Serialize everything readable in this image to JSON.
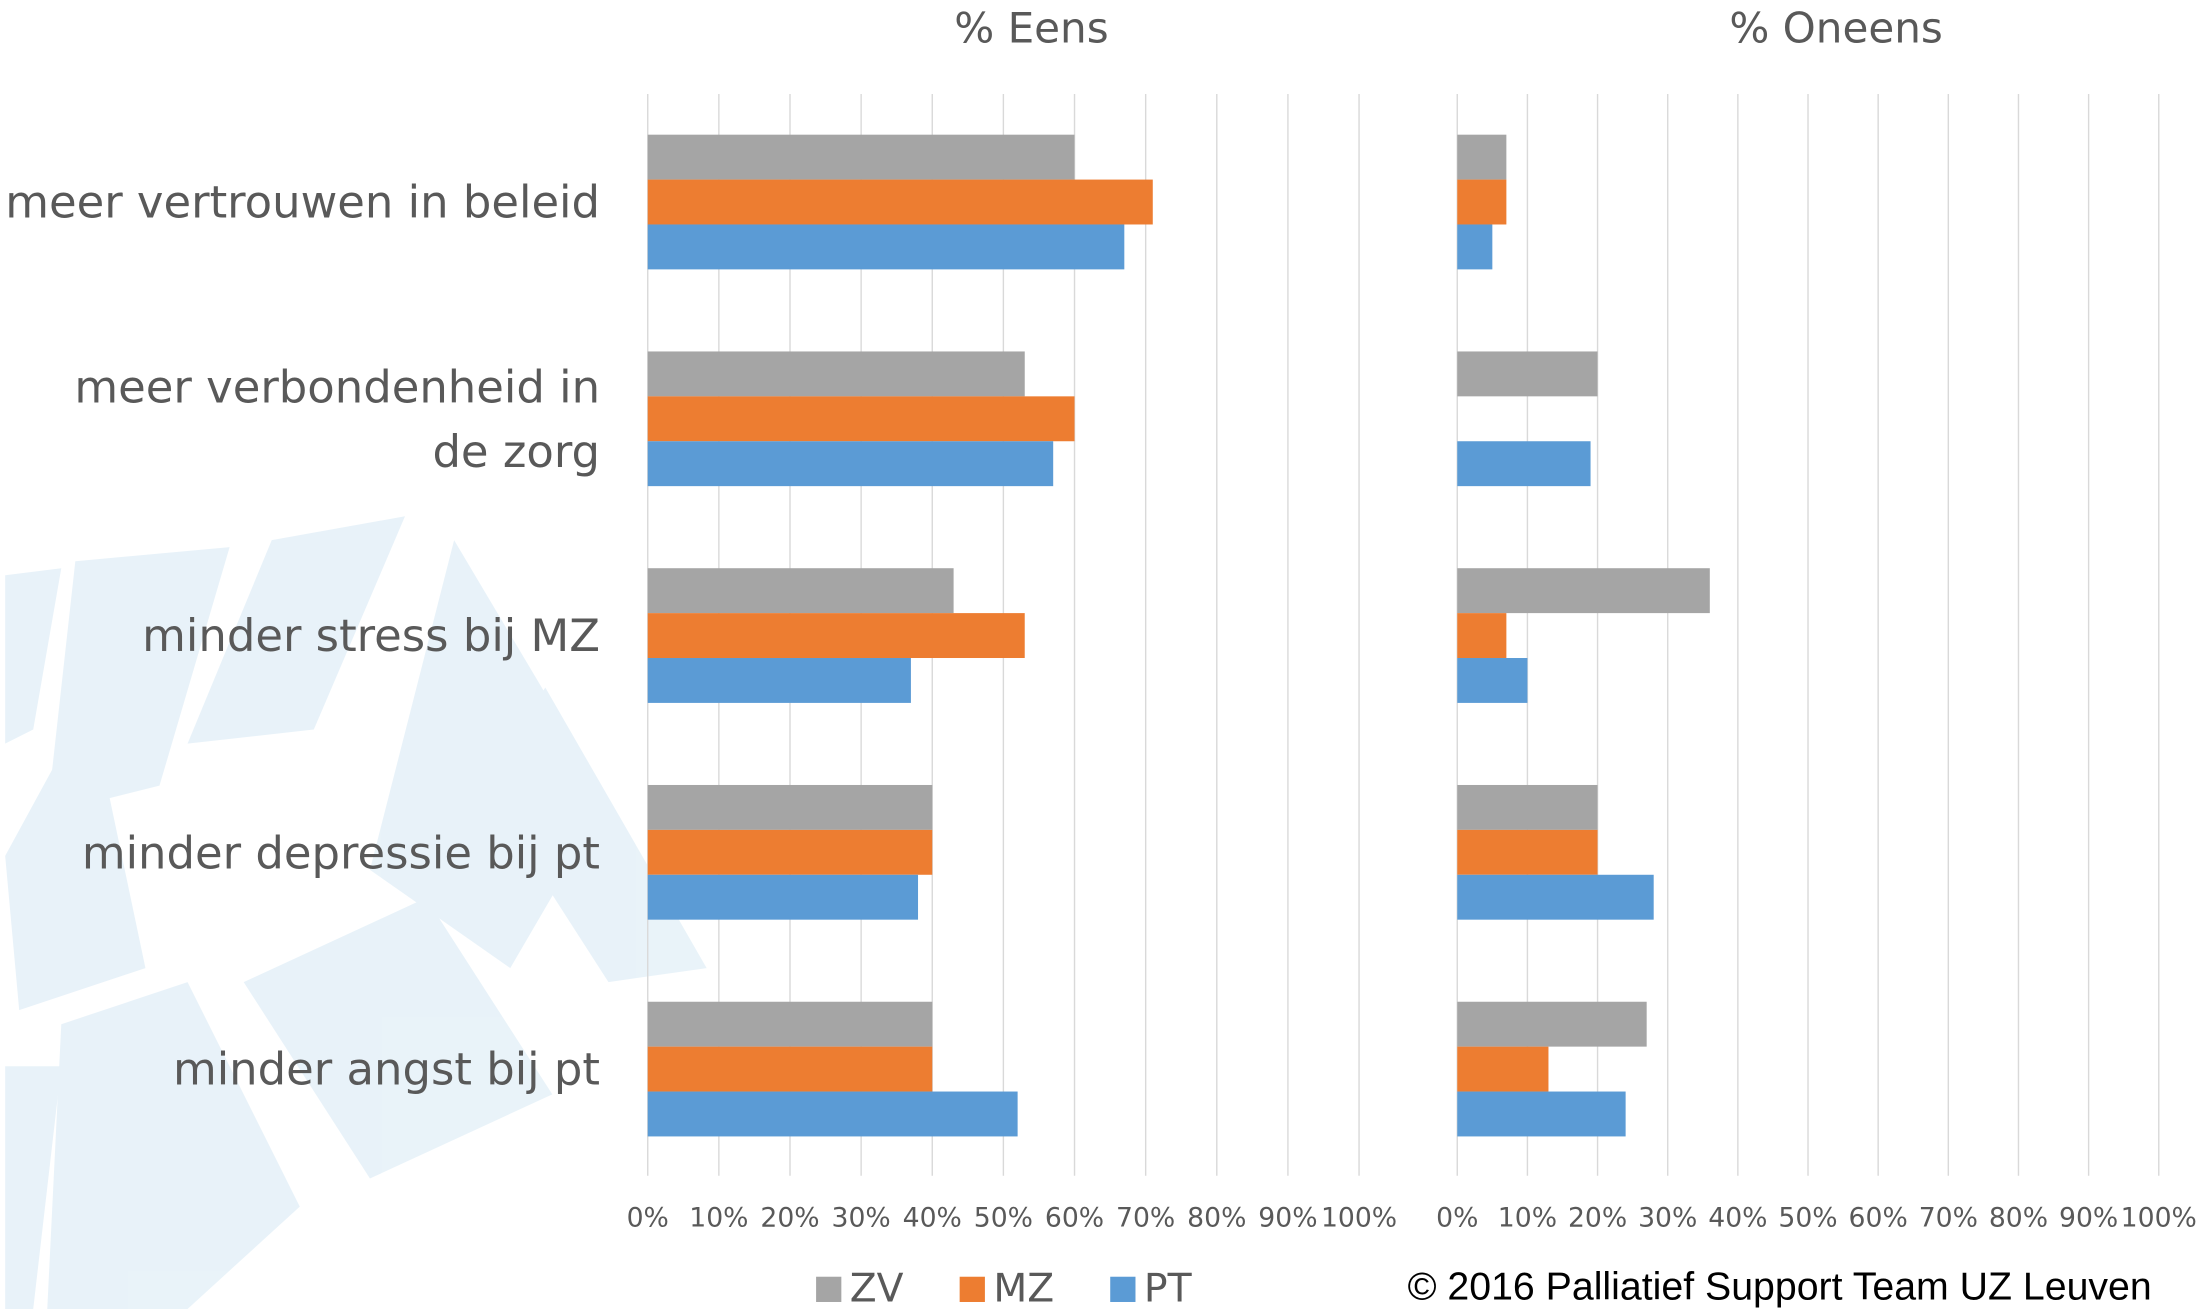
{
  "chart_data": [
    {
      "type": "bar",
      "orientation": "horizontal",
      "title": "% Eens",
      "categories": [
        "meer vertrouwen in beleid",
        "meer verbondenheid in de zorg",
        "minder stress bij MZ",
        "minder depressie bij pt",
        "minder angst bij pt"
      ],
      "series": [
        {
          "name": "ZV",
          "color": "#a5a5a5",
          "values": [
            60,
            53,
            43,
            40,
            40
          ]
        },
        {
          "name": "MZ",
          "color": "#ed7d31",
          "values": [
            71,
            60,
            53,
            40,
            40
          ]
        },
        {
          "name": "PT",
          "color": "#5b9bd5",
          "values": [
            67,
            57,
            37,
            38,
            52
          ]
        }
      ],
      "xlim": [
        0,
        100
      ],
      "xticks": [
        {
          "value": 0,
          "label": "0%"
        },
        {
          "value": 10,
          "label": "10%"
        },
        {
          "value": 20,
          "label": "20%"
        },
        {
          "value": 30,
          "label": "30%"
        },
        {
          "value": 40,
          "label": "40%"
        },
        {
          "value": 50,
          "label": "50%"
        },
        {
          "value": 60,
          "label": "60%"
        },
        {
          "value": 70,
          "label": "70%"
        },
        {
          "value": 80,
          "label": "80%"
        },
        {
          "value": 90,
          "label": "90%"
        },
        {
          "value": 100,
          "label": "100%"
        }
      ],
      "grid": true,
      "legend": "bottom"
    },
    {
      "type": "bar",
      "orientation": "horizontal",
      "title": "% Oneens",
      "series": [
        {
          "color": "#a5a5a5",
          "values": [
            7,
            20,
            36,
            20,
            27
          ]
        },
        {
          "color": "#ed7d31",
          "values": [
            7,
            null,
            7,
            20,
            13
          ]
        },
        {
          "color": "#5b9bd5",
          "values": [
            5,
            19,
            10,
            28,
            24
          ]
        }
      ],
      "xlim": [
        0,
        100
      ],
      "xticks": [
        {
          "value": 0,
          "label": "0%"
        },
        {
          "value": 10,
          "label": "10%"
        },
        {
          "value": 20,
          "label": "20%"
        },
        {
          "value": 30,
          "label": "30%"
        },
        {
          "value": 40,
          "label": "40%"
        },
        {
          "value": 50,
          "label": "50%"
        },
        {
          "value": 60,
          "label": "60%"
        },
        {
          "value": 70,
          "label": "70%"
        },
        {
          "value": 80,
          "label": "80%"
        },
        {
          "value": 90,
          "label": "90%"
        },
        {
          "value": 100,
          "label": "100%"
        }
      ],
      "grid": true
    }
  ],
  "copyright": "© 2016 Palliatief Support Team UZ Leuven"
}
